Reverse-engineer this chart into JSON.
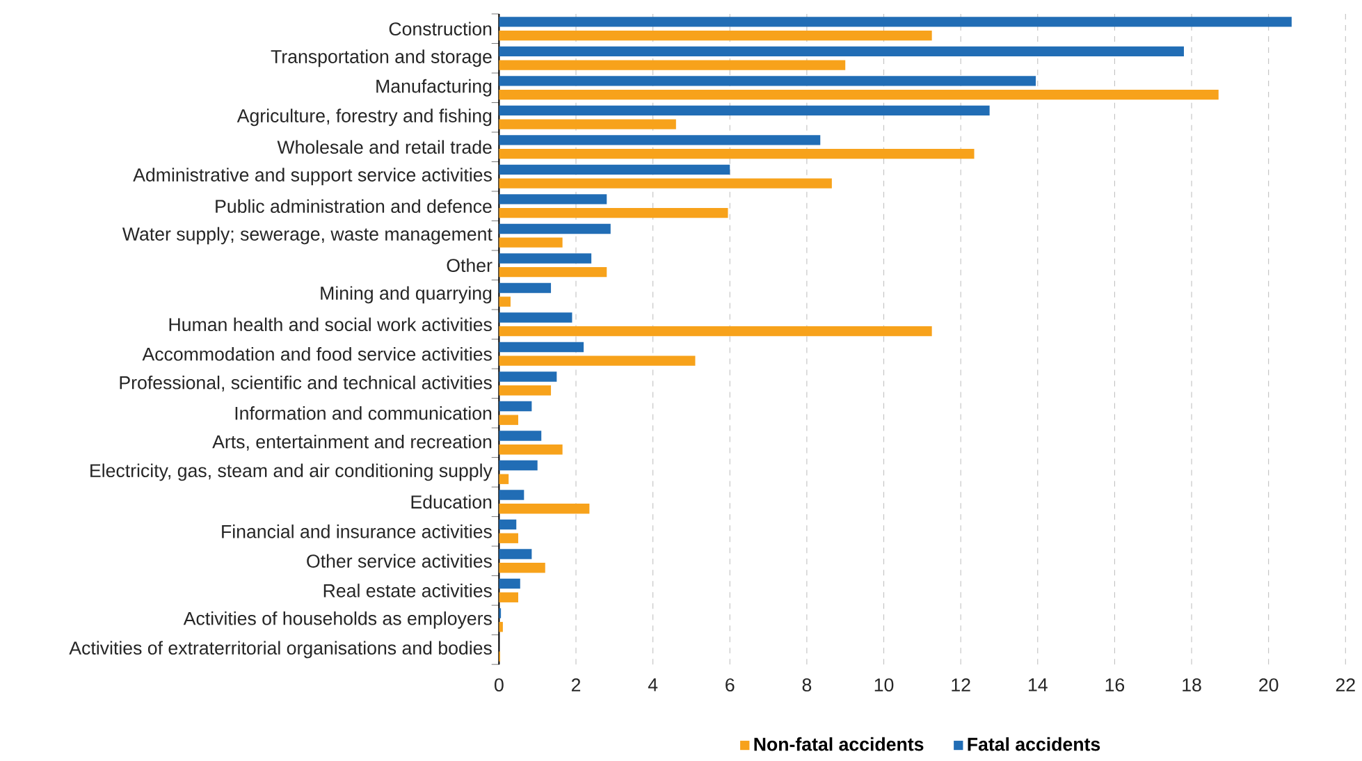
{
  "chart_data": {
    "type": "bar",
    "orientation": "horizontal",
    "categories": [
      "Construction",
      "Transportation and storage",
      "Manufacturing",
      "Agriculture, forestry and fishing",
      "Wholesale and retail trade",
      "Administrative and support service activities",
      "Public administration and defence",
      "Water supply; sewerage, waste management",
      "Other",
      "Mining and quarrying",
      "Human health and social work activities",
      "Accommodation and food service activities",
      "Professional, scientific and technical activities",
      "Information and communication",
      "Arts, entertainment and recreation",
      "Electricity, gas, steam and air conditioning supply",
      "Education",
      "Financial and insurance activities",
      "Other service activities",
      "Real estate activities",
      "Activities of households as employers",
      "Activities of extraterritorial organisations and bodies"
    ],
    "series": [
      {
        "name": "Non-fatal accidents",
        "color": "#f7a21b",
        "values": [
          11.25,
          9.0,
          18.7,
          4.6,
          12.35,
          8.65,
          5.95,
          1.65,
          2.8,
          0.3,
          11.25,
          5.1,
          1.35,
          0.5,
          1.65,
          0.25,
          2.35,
          0.5,
          1.2,
          0.5,
          0.1,
          0.03
        ]
      },
      {
        "name": "Fatal accidents",
        "color": "#216db5",
        "values": [
          20.6,
          17.8,
          13.95,
          12.75,
          8.35,
          6.0,
          2.8,
          2.9,
          2.4,
          1.35,
          1.9,
          2.2,
          1.5,
          0.85,
          1.1,
          1.0,
          0.65,
          0.45,
          0.85,
          0.55,
          0.05,
          0
        ]
      }
    ],
    "xlim": [
      0,
      22
    ],
    "xticks": [
      0,
      2,
      4,
      6,
      8,
      10,
      12,
      14,
      16,
      18,
      20,
      22
    ],
    "grid": "x",
    "legend": "bottom"
  }
}
